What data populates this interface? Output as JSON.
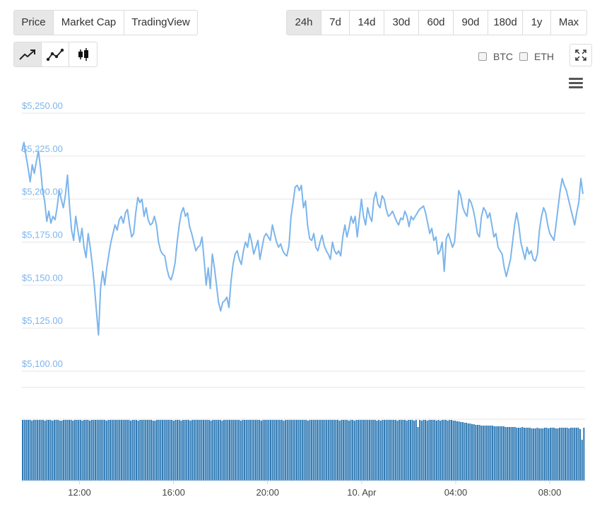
{
  "toolbar": {
    "metric_tabs": [
      {
        "label": "Price",
        "active": true
      },
      {
        "label": "Market Cap",
        "active": false
      },
      {
        "label": "TradingView",
        "active": false
      }
    ],
    "range_tabs": [
      {
        "label": "24h",
        "active": true
      },
      {
        "label": "7d",
        "active": false
      },
      {
        "label": "14d",
        "active": false
      },
      {
        "label": "30d",
        "active": false
      },
      {
        "label": "60d",
        "active": false
      },
      {
        "label": "90d",
        "active": false
      },
      {
        "label": "180d",
        "active": false
      },
      {
        "label": "1y",
        "active": false
      },
      {
        "label": "Max",
        "active": false
      }
    ],
    "chart_type_buttons": [
      {
        "icon": "line-chart-icon",
        "active": true
      },
      {
        "icon": "line-markers-chart-icon",
        "active": false
      },
      {
        "icon": "candlestick-chart-icon",
        "active": false
      }
    ],
    "compare": [
      {
        "label": "BTC",
        "checked": false
      },
      {
        "label": "ETH",
        "checked": false
      }
    ],
    "expand_icon": "expand-icon",
    "menu_icon": "hamburger-menu-icon"
  },
  "colors": {
    "line": "#7cb5ec",
    "volume": "#2f7ab5",
    "grid": "#e6e6e6",
    "active_button": "#e7e7e7"
  },
  "chart_data": {
    "type": "line",
    "title": "",
    "xlabel": "",
    "ylabel": "",
    "y_ticks": [
      "$5,100.00",
      "$5,125.00",
      "$5,150.00",
      "$5,175.00",
      "$5,200.00",
      "$5,225.00",
      "$5,250.00"
    ],
    "x_ticks": [
      "12:00",
      "16:00",
      "20:00",
      "10. Apr",
      "04:00",
      "08:00"
    ],
    "ylim": [
      5100,
      5250
    ],
    "x_range_hours": [
      9.55,
      33.5
    ],
    "x_tick_hours": [
      12,
      16,
      20,
      24,
      28,
      32
    ],
    "grid": true,
    "series": [
      {
        "values": [
          5228,
          5233,
          5225,
          5218,
          5210,
          5220,
          5215,
          5222,
          5228,
          5218,
          5205,
          5199,
          5187,
          5193,
          5186,
          5190,
          5188,
          5195,
          5205,
          5200,
          5195,
          5202,
          5214,
          5196,
          5182,
          5176,
          5190,
          5182,
          5175,
          5183,
          5172,
          5166,
          5180,
          5172,
          5162,
          5150,
          5135,
          5121,
          5148,
          5158,
          5150,
          5160,
          5168,
          5175,
          5180,
          5185,
          5182,
          5188,
          5190,
          5186,
          5192,
          5194,
          5185,
          5178,
          5180,
          5192,
          5201,
          5198,
          5200,
          5190,
          5195,
          5188,
          5185,
          5186,
          5190,
          5185,
          5175,
          5170,
          5168,
          5167,
          5160,
          5155,
          5153,
          5157,
          5163,
          5175,
          5185,
          5192,
          5195,
          5190,
          5192,
          5184,
          5180,
          5175,
          5170,
          5172,
          5173,
          5178,
          5165,
          5150,
          5160,
          5148,
          5168,
          5160,
          5150,
          5140,
          5135,
          5140,
          5141,
          5143,
          5137,
          5152,
          5162,
          5168,
          5170,
          5165,
          5162,
          5170,
          5175,
          5172,
          5180,
          5175,
          5168,
          5172,
          5176,
          5165,
          5172,
          5178,
          5180,
          5178,
          5176,
          5185,
          5180,
          5175,
          5172,
          5174,
          5170,
          5168,
          5167,
          5173,
          5190,
          5198,
          5207,
          5208,
          5205,
          5208,
          5195,
          5199,
          5185,
          5177,
          5176,
          5180,
          5172,
          5170,
          5175,
          5179,
          5173,
          5170,
          5168,
          5165,
          5175,
          5170,
          5168,
          5170,
          5167,
          5178,
          5185,
          5178,
          5183,
          5190,
          5186,
          5190,
          5178,
          5189,
          5200,
          5190,
          5185,
          5195,
          5190,
          5187,
          5200,
          5204,
          5197,
          5195,
          5202,
          5200,
          5194,
          5190,
          5191,
          5193,
          5190,
          5187,
          5185,
          5189,
          5188,
          5193,
          5190,
          5184,
          5190,
          5188,
          5190,
          5192,
          5194,
          5195,
          5196,
          5192,
          5186,
          5180,
          5183,
          5176,
          5178,
          5168,
          5170,
          5175,
          5158,
          5177,
          5180,
          5176,
          5172,
          5175,
          5190,
          5205,
          5202,
          5195,
          5192,
          5190,
          5200,
          5198,
          5194,
          5188,
          5180,
          5178,
          5190,
          5195,
          5193,
          5189,
          5192,
          5185,
          5178,
          5180,
          5172,
          5170,
          5168,
          5160,
          5155,
          5160,
          5165,
          5175,
          5185,
          5192,
          5185,
          5175,
          5170,
          5165,
          5172,
          5168,
          5170,
          5165,
          5164,
          5168,
          5182,
          5190,
          5195,
          5192,
          5185,
          5180,
          5178,
          5176,
          5185,
          5195,
          5205,
          5212,
          5208,
          5205,
          5200,
          5195,
          5190,
          5185,
          5192,
          5198,
          5212,
          5203
        ]
      }
    ],
    "volume": {
      "type": "bar",
      "values": [
        86,
        86,
        86,
        86,
        86,
        85,
        86,
        86,
        86,
        86,
        86,
        86,
        85,
        86,
        86,
        86,
        85,
        86,
        86,
        86,
        85,
        85,
        86,
        86,
        86,
        86,
        86,
        85,
        86,
        86,
        86,
        86,
        85,
        86,
        86,
        86,
        85,
        86,
        86,
        86,
        86,
        86,
        86,
        86,
        86,
        85,
        86,
        86,
        86,
        86,
        86,
        86,
        86,
        86,
        86,
        86,
        86,
        86,
        85,
        86,
        86,
        86,
        85,
        86,
        86,
        86,
        86,
        86,
        86,
        86,
        85,
        85,
        86,
        86,
        86,
        86,
        86,
        86,
        86,
        86,
        86,
        85,
        86,
        86,
        86,
        85,
        86,
        86,
        86,
        86,
        85,
        86,
        86,
        86,
        86,
        86,
        86,
        86,
        86,
        86,
        86,
        85,
        86,
        86,
        86,
        86,
        86,
        85,
        86,
        86,
        86,
        86,
        86,
        86,
        86,
        86,
        86,
        85,
        86,
        86,
        86,
        86,
        86,
        86,
        86,
        86,
        86,
        86,
        85,
        86,
        86,
        86,
        86,
        86,
        86,
        86,
        86,
        86,
        86,
        86,
        85,
        86,
        86,
        86,
        86,
        86,
        86,
        86,
        86,
        86,
        86,
        86,
        86,
        85,
        86,
        86,
        86,
        86,
        86,
        86,
        86,
        86,
        86,
        86,
        86,
        86,
        86,
        86,
        86,
        86,
        85,
        86,
        86,
        86,
        86,
        85,
        86,
        86,
        85,
        86,
        86,
        86,
        86,
        86,
        86,
        86,
        86,
        86,
        86,
        86,
        85,
        86,
        85,
        86,
        86,
        86,
        86,
        86,
        86,
        86,
        86,
        85,
        86,
        86,
        86,
        86,
        85,
        86,
        86,
        86,
        85,
        86,
        76,
        86,
        85,
        86,
        86,
        85,
        86,
        86,
        86,
        86,
        85,
        86,
        85,
        86,
        86,
        86,
        85,
        86,
        86,
        85,
        85,
        84,
        84,
        83,
        83,
        82,
        82,
        81,
        81,
        80,
        80,
        79,
        79,
        79,
        78,
        78,
        78,
        78,
        78,
        78,
        78,
        77,
        77,
        77,
        77,
        77,
        77,
        76,
        76,
        76,
        76,
        76,
        76,
        75,
        75,
        75,
        76,
        75,
        75,
        75,
        75,
        74,
        74,
        74,
        75,
        74,
        74,
        74,
        75,
        75,
        74,
        75,
        75,
        75,
        74,
        74,
        75,
        75,
        75,
        75,
        75,
        74,
        75,
        75,
        75,
        75,
        75,
        73,
        58,
        75
      ]
    }
  }
}
